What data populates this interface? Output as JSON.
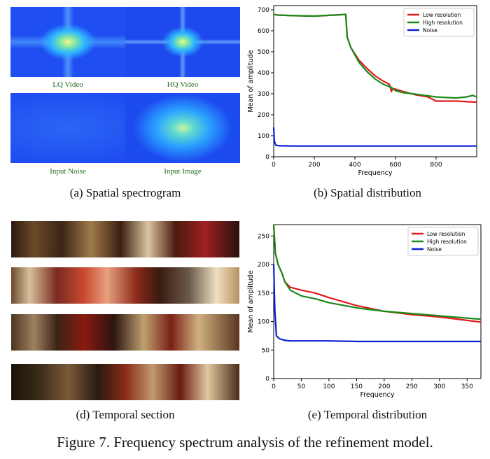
{
  "panels": {
    "a": {
      "caption": "(a) Spatial spectrogram",
      "labels": [
        "LQ Video",
        "HQ Video",
        "Input Noise",
        "Input Image"
      ]
    },
    "b": {
      "caption": "(b) Spatial distribution"
    },
    "d": {
      "caption": "(d) Temporal section"
    },
    "e": {
      "caption": "(e) Temporal distribution"
    }
  },
  "figure_caption": "Figure 7. Frequency spectrum analysis of the refinement model.",
  "colors": {
    "low": "#e31a1c",
    "high": "#1a8a1a",
    "noise": "#0b1fd6",
    "label_green": "#1f6b1f"
  },
  "chart_data": [
    {
      "id": "spatial",
      "type": "line",
      "xlabel": "Frequency",
      "ylabel": "Mean of amplitude",
      "xlim": [
        0,
        1000
      ],
      "ylim": [
        0,
        720
      ],
      "xticks": [
        0,
        200,
        400,
        600,
        800
      ],
      "yticks": [
        0,
        100,
        200,
        300,
        400,
        500,
        600,
        700
      ],
      "legend": "top-right",
      "series": [
        {
          "name": "Low resolution",
          "color": "#e31a1c",
          "x": [
            0,
            20,
            100,
            200,
            300,
            355,
            362,
            380,
            420,
            460,
            500,
            540,
            570,
            580,
            585,
            600,
            640,
            700,
            760,
            800,
            850,
            900,
            950,
            1000
          ],
          "y": [
            678,
            675,
            672,
            670,
            675,
            678,
            570,
            520,
            460,
            420,
            385,
            360,
            345,
            310,
            325,
            322,
            310,
            295,
            285,
            265,
            265,
            265,
            262,
            260
          ]
        },
        {
          "name": "High resolution",
          "color": "#1a8a1a",
          "x": [
            0,
            20,
            100,
            200,
            300,
            355,
            362,
            380,
            420,
            460,
            500,
            540,
            580,
            600,
            640,
            700,
            760,
            800,
            850,
            900,
            950,
            980,
            1000
          ],
          "y": [
            678,
            675,
            672,
            670,
            675,
            678,
            570,
            520,
            450,
            405,
            370,
            345,
            330,
            315,
            305,
            298,
            290,
            285,
            282,
            280,
            285,
            292,
            285
          ]
        },
        {
          "name": "Noise",
          "color": "#0b1fd6",
          "x": [
            0,
            3,
            10,
            30,
            100,
            300,
            500,
            700,
            900,
            1000
          ],
          "y": [
            140,
            75,
            55,
            52,
            51,
            51,
            51,
            51,
            51,
            51
          ]
        }
      ]
    },
    {
      "id": "temporal",
      "type": "line",
      "xlabel": "Frequency",
      "ylabel": "Mean of amplitude",
      "xlim": [
        0,
        375
      ],
      "ylim": [
        0,
        270
      ],
      "xticks": [
        0,
        50,
        100,
        150,
        200,
        250,
        300,
        350
      ],
      "yticks": [
        0,
        50,
        100,
        150,
        200,
        250
      ],
      "legend": "top-right",
      "series": [
        {
          "name": "Low resolution",
          "color": "#e31a1c",
          "x": [
            0,
            3,
            8,
            15,
            20,
            30,
            50,
            75,
            100,
            150,
            200,
            250,
            300,
            350,
            375
          ],
          "y": [
            270,
            220,
            200,
            185,
            170,
            160,
            155,
            150,
            142,
            128,
            118,
            112,
            108,
            102,
            99
          ]
        },
        {
          "name": "High resolution",
          "color": "#1a8a1a",
          "x": [
            0,
            3,
            8,
            15,
            20,
            30,
            50,
            75,
            100,
            150,
            200,
            250,
            300,
            350,
            375
          ],
          "y": [
            270,
            220,
            200,
            185,
            170,
            155,
            145,
            140,
            133,
            124,
            118,
            114,
            110,
            106,
            104
          ]
        },
        {
          "name": "Noise",
          "color": "#0b1fd6",
          "x": [
            0,
            2,
            5,
            10,
            20,
            30,
            50,
            100,
            150,
            200,
            250,
            300,
            350,
            375
          ],
          "y": [
            200,
            120,
            75,
            70,
            67,
            66,
            66,
            66,
            65,
            65,
            65,
            65,
            65,
            65
          ]
        }
      ]
    }
  ]
}
